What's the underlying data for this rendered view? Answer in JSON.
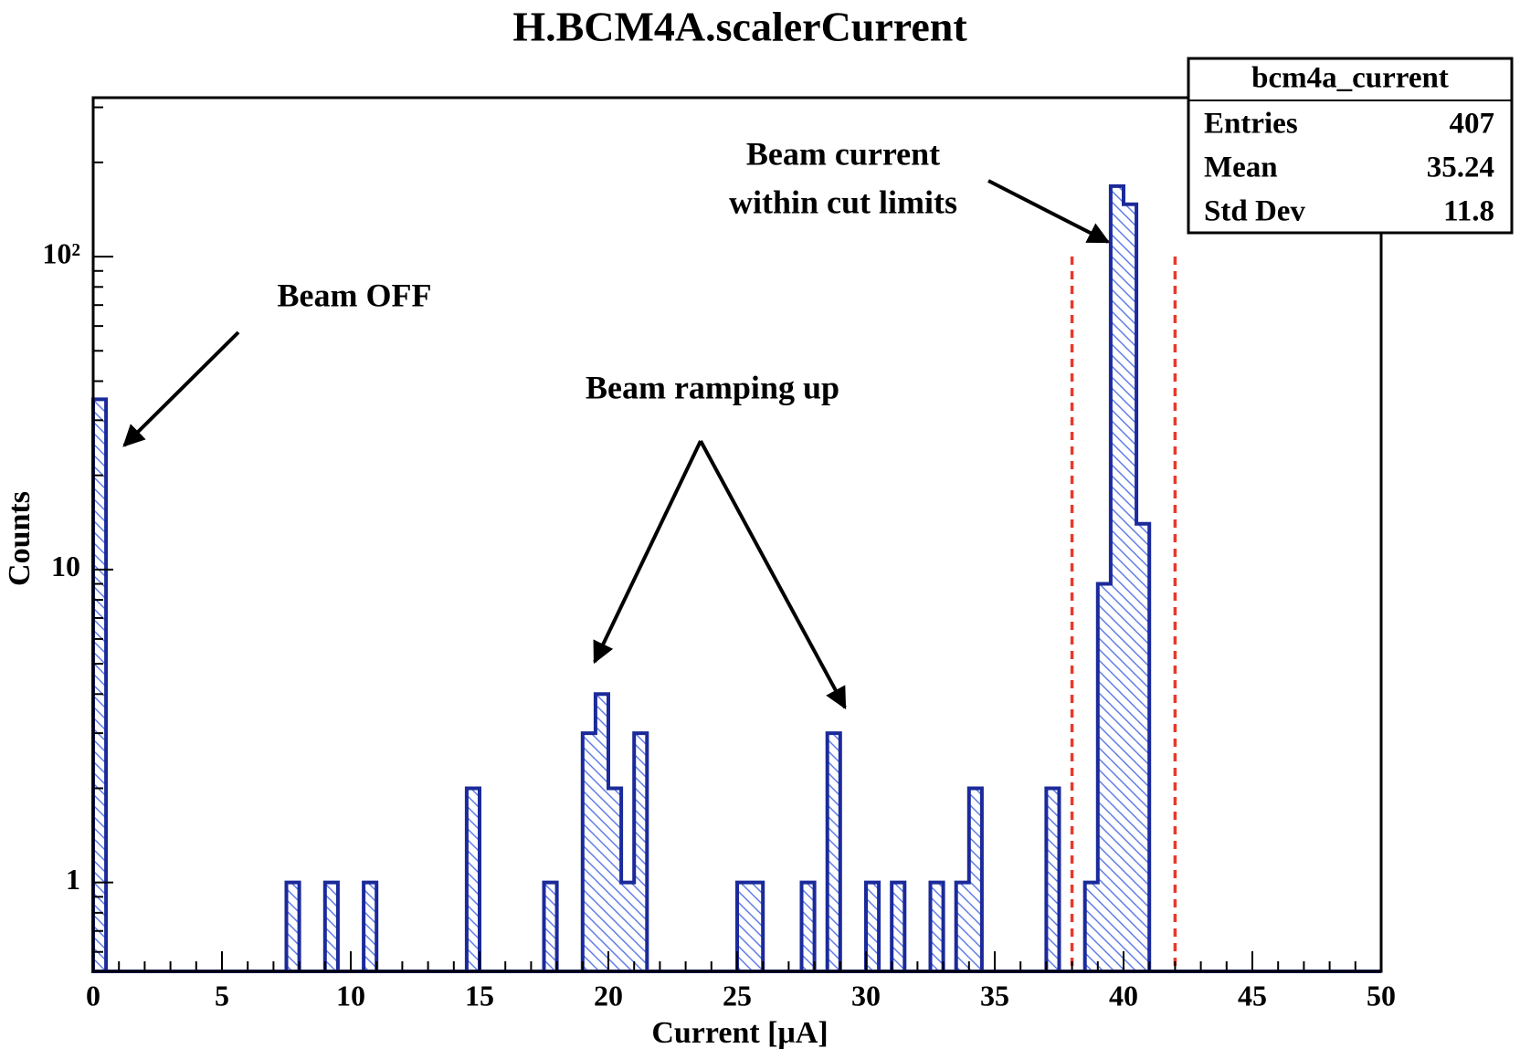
{
  "chart_data": {
    "type": "histogram",
    "title": "H.BCM4A.scalerCurrent",
    "x_label": "Current [μA]",
    "y_label": "Counts",
    "bins": [
      0,
      0.5,
      1,
      1.5,
      2,
      2.5,
      3,
      3.5,
      4,
      4.5,
      5,
      5.5,
      6,
      6.5,
      7,
      7.5,
      8,
      8.5,
      9,
      9.5,
      10,
      10.5,
      11,
      11.5,
      12,
      12.5,
      13,
      13.5,
      14,
      14.5,
      15,
      15.5,
      16,
      16.5,
      17,
      17.5,
      18,
      18.5,
      19,
      19.5,
      20,
      20.5,
      21,
      21.5,
      22,
      22.5,
      23,
      23.5,
      24,
      24.5,
      25,
      25.5,
      26,
      26.5,
      27,
      27.5,
      28,
      28.5,
      29,
      29.5,
      30,
      30.5,
      31,
      31.5,
      32,
      32.5,
      33,
      33.5,
      34,
      34.5,
      35,
      35.5,
      36,
      36.5,
      37,
      37.5,
      38,
      38.5,
      39,
      39.5,
      40,
      40.5,
      41,
      41.5,
      42,
      42.5,
      43,
      43.5,
      44,
      44.5,
      45,
      45.5,
      46,
      46.5,
      47,
      47.5,
      48,
      48.5,
      49,
      49.5,
      50
    ],
    "values": [
      35,
      0,
      0,
      0,
      0,
      0,
      0,
      0,
      0,
      0,
      0,
      0,
      0,
      0,
      0,
      1,
      0,
      0,
      1,
      0,
      0,
      1,
      0,
      0,
      0,
      0,
      0,
      0,
      0,
      2,
      0,
      0,
      0,
      0,
      0,
      1,
      0,
      0,
      3,
      4,
      2,
      1,
      3,
      0,
      0,
      0,
      0,
      0,
      0,
      0,
      1,
      1,
      0,
      0,
      0,
      1,
      0,
      3,
      0,
      0,
      1,
      0,
      1,
      0,
      0,
      1,
      0,
      1,
      2,
      0,
      0,
      0,
      0,
      0,
      2,
      0,
      0,
      1,
      9,
      168,
      147,
      14,
      0,
      0,
      0,
      0,
      0,
      0,
      0,
      0,
      0,
      0,
      0,
      0,
      0,
      0,
      0,
      0,
      0,
      0
    ],
    "color": "#1b2a9a",
    "hatch_color": "#5a78e6",
    "xlim": [
      0,
      50
    ],
    "xticks": [
      0,
      5,
      10,
      15,
      20,
      25,
      30,
      35,
      40,
      45,
      50
    ],
    "xminorticks": [
      1,
      2,
      3,
      4,
      6,
      7,
      8,
      9,
      11,
      12,
      13,
      14,
      16,
      17,
      18,
      19,
      21,
      22,
      23,
      24,
      26,
      27,
      28,
      29,
      31,
      32,
      33,
      34,
      36,
      37,
      38,
      39,
      41,
      42,
      43,
      44,
      46,
      47,
      48,
      49
    ],
    "ylim": [
      0.52,
      322
    ],
    "log_y": true,
    "yticks": [
      1,
      10,
      {
        "value": 100,
        "label": "10²"
      }
    ],
    "yminorticks": [
      0.6,
      0.7,
      0.8,
      0.9,
      2,
      3,
      4,
      5,
      6,
      7,
      8,
      9,
      20,
      30,
      40,
      50,
      60,
      70,
      80,
      90,
      200,
      300
    ],
    "cut_lines": {
      "values": [
        38,
        42
      ],
      "color": "#e8392b"
    },
    "annotations": [
      "Beam OFF",
      "Beam ramping up",
      "Beam current",
      "within cut limits"
    ],
    "stats": {
      "title": "bcm4a_current",
      "rows": [
        {
          "label": "Entries",
          "value": 407
        },
        {
          "label": "Mean",
          "value": 35.24
        },
        {
          "label": "Std Dev",
          "value": 11.8
        }
      ]
    }
  }
}
